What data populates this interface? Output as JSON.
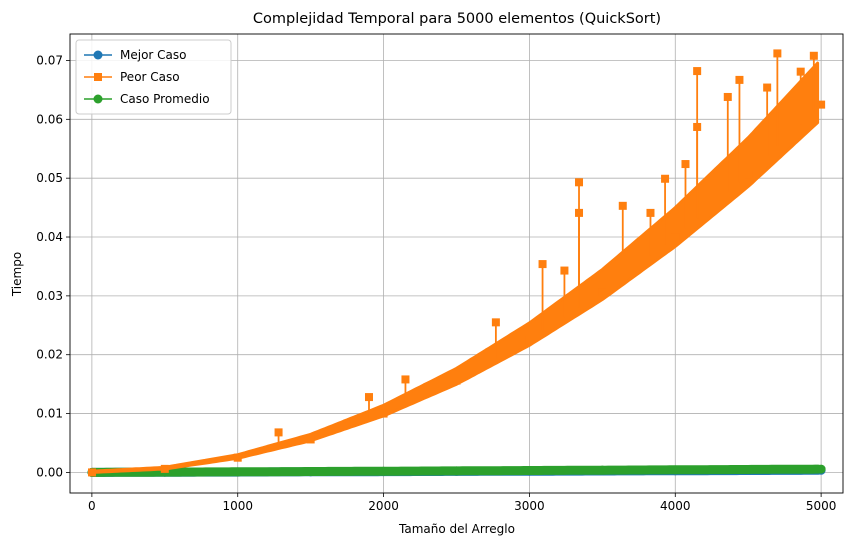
{
  "chart_data": {
    "type": "line",
    "title": "Complejidad Temporal para 5000 elementos (QuickSort)",
    "xlabel": "Tamaño del Arreglo",
    "ylabel": "Tiempo",
    "xlim": [
      -150,
      5150
    ],
    "ylim": [
      -0.0035,
      0.0745
    ],
    "xticks": [
      0,
      1000,
      2000,
      3000,
      4000,
      5000
    ],
    "yticks": [
      0.0,
      0.01,
      0.02,
      0.03,
      0.04,
      0.05,
      0.06,
      0.07
    ],
    "xtick_labels": [
      "0",
      "1000",
      "2000",
      "3000",
      "4000",
      "5000"
    ],
    "ytick_labels": [
      "0.00",
      "0.01",
      "0.02",
      "0.03",
      "0.04",
      "0.05",
      "0.06",
      "0.07"
    ],
    "grid": true,
    "legend_position": "upper-left",
    "series": [
      {
        "name": "Mejor Caso",
        "color": "#1f77b4",
        "marker": "circle",
        "x": [
          1,
          500,
          1000,
          1500,
          2000,
          2500,
          3000,
          3500,
          4000,
          4500,
          5000
        ],
        "y": [
          0.0,
          3e-05,
          6e-05,
          0.0001,
          0.00013,
          0.00017,
          0.0002,
          0.00024,
          0.00028,
          0.00032,
          0.00036
        ]
      },
      {
        "name": "Peor Caso",
        "color": "#ff7f0e",
        "marker": "square",
        "x": [
          1,
          500,
          1000,
          1500,
          2000,
          2500,
          3000,
          3500,
          4000,
          4500,
          5000
        ],
        "y": [
          0.0,
          0.0006,
          0.0025,
          0.0056,
          0.01,
          0.0156,
          0.0225,
          0.0306,
          0.04,
          0.0506,
          0.0625
        ],
        "spikes": [
          {
            "x": 1280,
            "y": 0.0068
          },
          {
            "x": 1900,
            "y": 0.0128
          },
          {
            "x": 2150,
            "y": 0.0158
          },
          {
            "x": 2770,
            "y": 0.0255
          },
          {
            "x": 3090,
            "y": 0.0354
          },
          {
            "x": 3340,
            "y": 0.0493
          },
          {
            "x": 3340,
            "y": 0.0441
          },
          {
            "x": 3240,
            "y": 0.0343
          },
          {
            "x": 3640,
            "y": 0.0453
          },
          {
            "x": 3830,
            "y": 0.0441
          },
          {
            "x": 3930,
            "y": 0.0499
          },
          {
            "x": 4070,
            "y": 0.0524
          },
          {
            "x": 4150,
            "y": 0.0682
          },
          {
            "x": 4150,
            "y": 0.0587
          },
          {
            "x": 4360,
            "y": 0.0638
          },
          {
            "x": 4440,
            "y": 0.0667
          },
          {
            "x": 4630,
            "y": 0.0654
          },
          {
            "x": 4700,
            "y": 0.0712
          },
          {
            "x": 4950,
            "y": 0.0708
          },
          {
            "x": 4860,
            "y": 0.0681
          }
        ]
      },
      {
        "name": "Caso Promedio",
        "color": "#2ca02c",
        "marker": "circle",
        "x": [
          1,
          500,
          1000,
          1500,
          2000,
          2500,
          3000,
          3500,
          4000,
          4500,
          5000
        ],
        "y": [
          0.0,
          5e-05,
          0.0001,
          0.00015,
          0.0002,
          0.00026,
          0.00032,
          0.00038,
          0.00044,
          0.0005,
          0.00056
        ]
      }
    ]
  }
}
